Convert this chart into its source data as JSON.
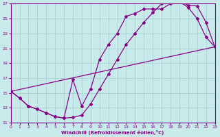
{
  "xlabel": "Windchill (Refroidissement éolien,°C)",
  "bg_color": "#c8eaea",
  "grid_color": "#a0cccc",
  "line_color": "#880088",
  "xlim": [
    0,
    23
  ],
  "ylim": [
    11,
    27
  ],
  "xticks": [
    0,
    1,
    2,
    3,
    4,
    5,
    6,
    7,
    8,
    9,
    10,
    11,
    12,
    13,
    14,
    15,
    16,
    17,
    18,
    19,
    20,
    21,
    22,
    23
  ],
  "yticks": [
    11,
    13,
    15,
    17,
    19,
    21,
    23,
    25,
    27
  ],
  "series1_x": [
    0,
    1,
    2,
    3,
    4,
    5,
    6,
    7,
    8,
    9,
    10,
    11,
    12,
    13,
    14,
    15,
    16,
    17,
    18,
    19,
    20,
    21,
    22,
    23
  ],
  "series1_y": [
    15.2,
    14.3,
    13.2,
    12.8,
    12.3,
    11.8,
    11.6,
    11.7,
    12.0,
    13.5,
    15.5,
    17.5,
    19.5,
    21.5,
    23.0,
    24.5,
    25.8,
    27.0,
    27.2,
    27.3,
    26.5,
    25.0,
    22.5,
    21.2
  ],
  "series2_x": [
    0,
    1,
    2,
    3,
    4,
    5,
    6,
    7,
    8,
    9,
    10,
    11,
    12,
    13,
    14,
    15,
    16,
    17,
    18,
    19,
    20,
    21,
    22,
    23
  ],
  "series2_y": [
    15.2,
    14.3,
    13.2,
    12.8,
    12.3,
    11.8,
    11.6,
    16.8,
    13.2,
    15.5,
    19.5,
    21.5,
    23.0,
    25.3,
    25.7,
    26.3,
    26.3,
    26.3,
    27.0,
    27.3,
    26.8,
    26.7,
    24.5,
    21.2
  ],
  "series3_x": [
    0,
    23
  ],
  "series3_y": [
    15.2,
    21.2
  ],
  "marker": "D",
  "markersize": 2.0,
  "linewidth": 0.9
}
